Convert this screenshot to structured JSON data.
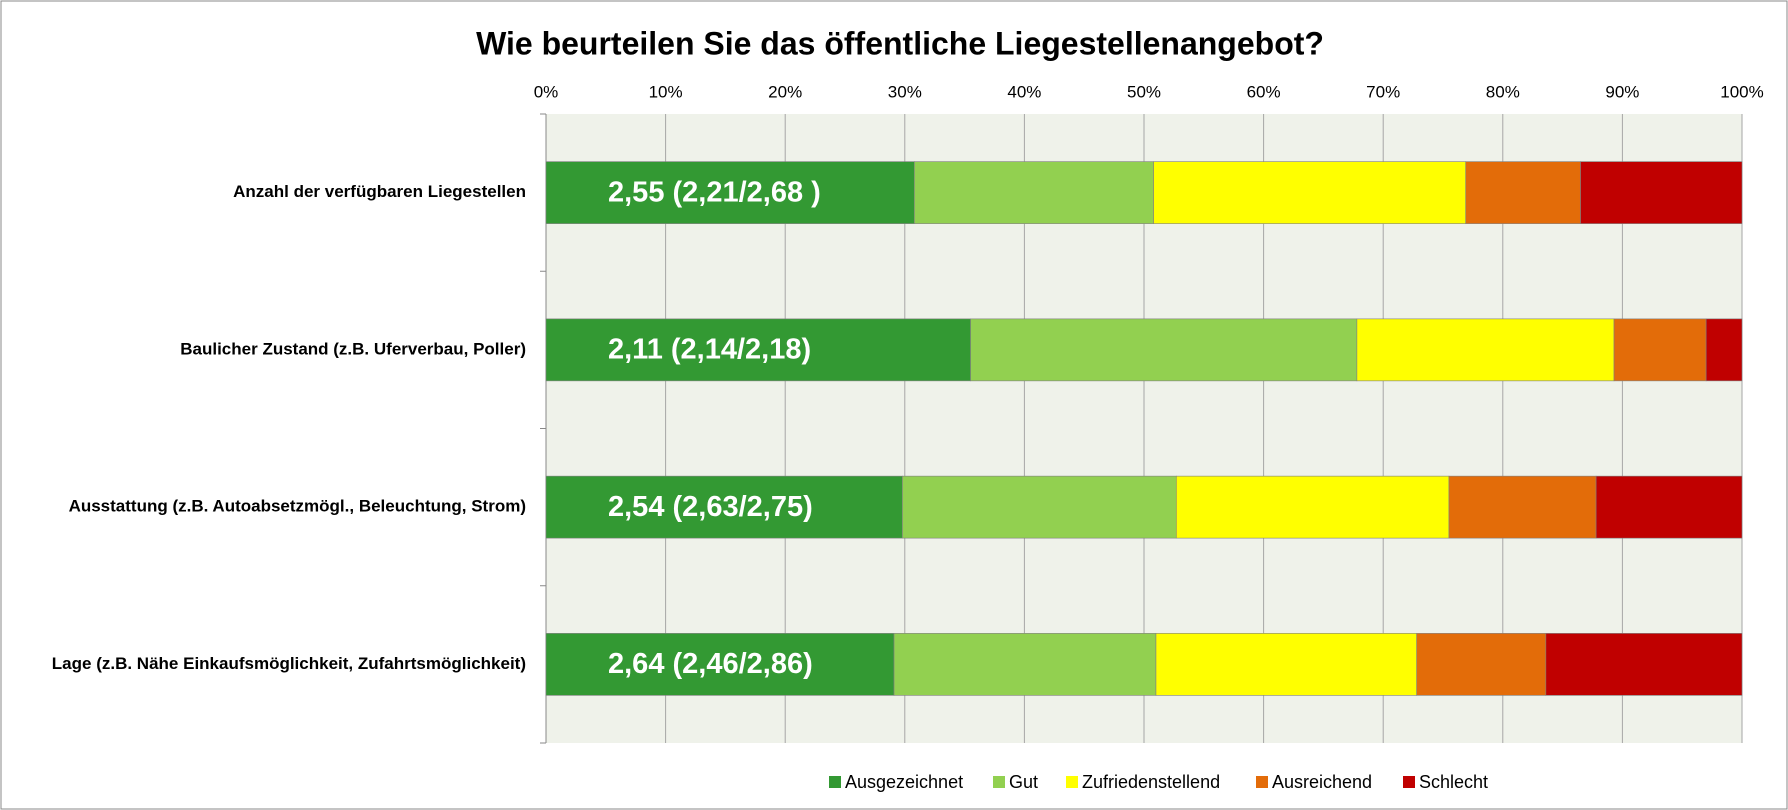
{
  "chart_data": {
    "type": "stacked_barh",
    "title": "Wie beurteilen Sie das öffentliche Liegestellenangebot?",
    "categories": [
      "Anzahl der verfügbaren Liegestellen",
      "Baulicher Zustand (z.B. Uferverbau, Poller)",
      "Ausstattung (z.B. Autoabsetzmögl., Beleuchtung, Strom)",
      "Lage (z.B. Nähe Einkaufsmöglichkeit, Zufahrtsmöglichkeit)"
    ],
    "annotations": [
      "2,55 (2,21/2,68 )",
      "2,11 (2,14/2,18)",
      "2,54 (2,63/2,75)",
      "2,64 (2,46/2,86)"
    ],
    "series": [
      {
        "name": "Ausgezeichnet",
        "color": "#339933",
        "values": [
          30.8,
          35.5,
          29.8,
          29.1
        ]
      },
      {
        "name": "Gut",
        "color": "#92d050",
        "values": [
          20.0,
          32.3,
          22.9,
          21.9
        ]
      },
      {
        "name": "Zufriedenstellend",
        "color": "#ffff00",
        "values": [
          26.1,
          21.5,
          22.8,
          21.8
        ]
      },
      {
        "name": "Ausreichend",
        "color": "#e36c09",
        "values": [
          9.6,
          7.7,
          12.3,
          10.8
        ]
      },
      {
        "name": "Schlecht",
        "color": "#c00000",
        "values": [
          13.5,
          3.0,
          12.2,
          16.4
        ]
      }
    ],
    "xlim": [
      0,
      100
    ],
    "xticks": [
      {
        "value": 0,
        "label": "0%"
      },
      {
        "value": 10,
        "label": "10%"
      },
      {
        "value": 20,
        "label": "20%"
      },
      {
        "value": 30,
        "label": "30%"
      },
      {
        "value": 40,
        "label": "40%"
      },
      {
        "value": 50,
        "label": "50%"
      },
      {
        "value": 60,
        "label": "60%"
      },
      {
        "value": 70,
        "label": "70%"
      },
      {
        "value": 80,
        "label": "80%"
      },
      {
        "value": 90,
        "label": "90%"
      },
      {
        "value": 100,
        "label": "100%"
      }
    ],
    "grid": true,
    "legend": "bottom"
  }
}
